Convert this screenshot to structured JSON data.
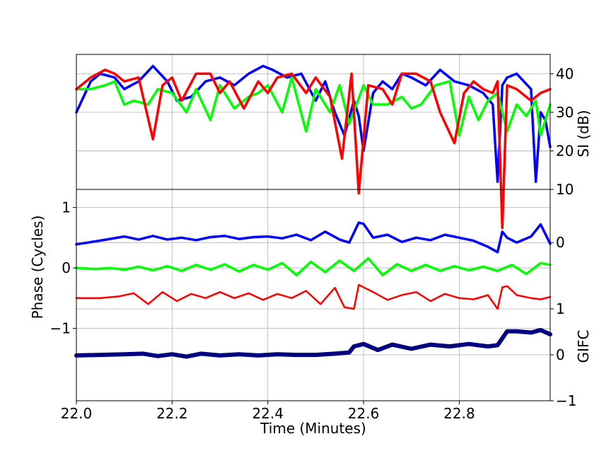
{
  "chart_data": {
    "type": "line",
    "xlabel": "Time (Minutes)",
    "xlim": [
      22.0,
      22.99
    ],
    "xticks": [
      22.0,
      22.2,
      22.4,
      22.6,
      22.8
    ],
    "xtick_labels": [
      "22.0",
      "22.2",
      "22.4",
      "22.6",
      "22.8"
    ],
    "grid": true,
    "panels": [
      {
        "id": "si",
        "ylabel_right": "SI (dB)",
        "ylim": [
          10,
          45
        ],
        "yticks": [
          10,
          20,
          30,
          40
        ],
        "ytick_labels": [
          "10",
          "20",
          "30",
          "40"
        ],
        "series": [
          {
            "color": "#0000ff",
            "x": [
              22.0,
              22.03,
              22.05,
              22.08,
              22.1,
              22.13,
              22.16,
              22.19,
              22.21,
              22.24,
              22.27,
              22.3,
              22.33,
              22.36,
              22.39,
              22.41,
              22.44,
              22.47,
              22.5,
              22.52,
              22.54,
              22.56,
              22.58,
              22.59,
              22.6,
              22.62,
              22.64,
              22.66,
              22.68,
              22.7,
              22.73,
              22.76,
              22.79,
              22.82,
              22.85,
              22.87,
              22.88,
              22.89,
              22.9,
              22.92,
              22.95,
              22.96,
              22.97,
              22.98,
              22.99
            ],
            "y": [
              30,
              38,
              40,
              39,
              36,
              38,
              42,
              38,
              33,
              34,
              38,
              39,
              37,
              40,
              42,
              41,
              39,
              40,
              33,
              38,
              30,
              24,
              33,
              29,
              20,
              35,
              38,
              36,
              40,
              39,
              37,
              41,
              38,
              37,
              35,
              32,
              12,
              37,
              39,
              40,
              36,
              12,
              30,
              28,
              21
            ]
          },
          {
            "color": "#00ff00",
            "x": [
              22.0,
              22.03,
              22.06,
              22.08,
              22.1,
              22.12,
              22.15,
              22.17,
              22.2,
              22.23,
              22.25,
              22.28,
              22.3,
              22.33,
              22.36,
              22.38,
              22.4,
              22.43,
              22.45,
              22.48,
              22.5,
              22.53,
              22.55,
              22.57,
              22.6,
              22.62,
              22.65,
              22.68,
              22.7,
              22.72,
              22.75,
              22.78,
              22.8,
              22.82,
              22.84,
              22.86,
              22.88,
              22.9,
              22.92,
              22.94,
              22.96,
              22.97,
              22.99
            ],
            "y": [
              36,
              36,
              37,
              38,
              32,
              33,
              32,
              36,
              35,
              30,
              36,
              28,
              37,
              31,
              34,
              35,
              37,
              30,
              39,
              25,
              36,
              30,
              37,
              27,
              37,
              32,
              32,
              34,
              31,
              32,
              37,
              38,
              24,
              34,
              28,
              33,
              35,
              25,
              32,
              29,
              33,
              24,
              32
            ]
          },
          {
            "color": "#ff0000",
            "x": [
              22.0,
              22.03,
              22.06,
              22.08,
              22.1,
              22.13,
              22.16,
              22.18,
              22.2,
              22.22,
              22.25,
              22.28,
              22.3,
              22.32,
              22.35,
              22.38,
              22.4,
              22.42,
              22.45,
              22.48,
              22.5,
              22.53,
              22.555,
              22.575,
              22.59,
              22.61,
              22.64,
              22.66,
              22.68,
              22.71,
              22.74,
              22.76,
              22.79,
              22.81,
              22.83,
              22.85,
              22.87,
              22.88,
              22.89,
              22.9,
              22.92,
              22.95,
              22.97,
              22.99
            ],
            "y": [
              36,
              39,
              41,
              40,
              38,
              39,
              23,
              37,
              39,
              33,
              40,
              40,
              35,
              38,
              31,
              38,
              35,
              39,
              40,
              35,
              39,
              34,
              18,
              40,
              9,
              37,
              36,
              32,
              40,
              40,
              38,
              30,
              22,
              35,
              38,
              36,
              35,
              38,
              0,
              37,
              36,
              33,
              35,
              36
            ]
          }
        ]
      },
      {
        "id": "phase",
        "ylabel_left": "Phase (Cycles)",
        "ylim": [
          -2.2,
          1.3
        ],
        "yticks": [
          -1,
          0,
          1
        ],
        "ytick_labels": [
          "−1",
          "0",
          "1"
        ],
        "series": [
          {
            "color": "#0000ff",
            "x": [
              22.0,
              22.04,
              22.07,
              22.1,
              22.13,
              22.16,
              22.19,
              22.22,
              22.25,
              22.28,
              22.31,
              22.34,
              22.37,
              22.4,
              22.43,
              22.46,
              22.49,
              22.52,
              22.55,
              22.57,
              22.59,
              22.6,
              22.62,
              22.65,
              22.68,
              22.71,
              22.74,
              22.77,
              22.8,
              22.83,
              22.86,
              22.88,
              22.89,
              22.9,
              22.92,
              22.95,
              22.97,
              22.99
            ],
            "y": [
              0.39,
              0.44,
              0.48,
              0.52,
              0.47,
              0.53,
              0.47,
              0.5,
              0.46,
              0.51,
              0.53,
              0.48,
              0.51,
              0.52,
              0.49,
              0.55,
              0.46,
              0.6,
              0.47,
              0.42,
              0.75,
              0.73,
              0.5,
              0.55,
              0.43,
              0.5,
              0.46,
              0.55,
              0.5,
              0.45,
              0.35,
              0.26,
              0.6,
              0.5,
              0.42,
              0.52,
              0.72,
              0.4
            ]
          },
          {
            "color": "#00ff00",
            "x": [
              22.0,
              22.04,
              22.07,
              22.1,
              22.13,
              22.16,
              22.19,
              22.22,
              22.25,
              22.28,
              22.31,
              22.34,
              22.37,
              22.4,
              22.43,
              22.46,
              22.49,
              22.52,
              22.55,
              22.58,
              22.61,
              22.64,
              22.67,
              22.7,
              22.73,
              22.76,
              22.79,
              22.82,
              22.85,
              22.88,
              22.91,
              22.94,
              22.97,
              22.99
            ],
            "y": [
              0.0,
              -0.02,
              0.0,
              -0.03,
              0.02,
              -0.04,
              0.03,
              -0.05,
              0.05,
              -0.03,
              0.06,
              -0.06,
              0.05,
              -0.03,
              0.08,
              -0.12,
              0.1,
              -0.07,
              0.12,
              -0.05,
              0.16,
              -0.12,
              0.06,
              -0.05,
              0.05,
              -0.05,
              0.03,
              -0.04,
              0.02,
              -0.05,
              0.05,
              -0.1,
              0.08,
              0.05
            ]
          },
          {
            "color": "#ff0000",
            "x": [
              22.0,
              22.05,
              22.09,
              22.12,
              22.15,
              22.18,
              22.21,
              22.24,
              22.27,
              22.3,
              22.33,
              22.36,
              22.39,
              22.42,
              22.45,
              22.48,
              22.51,
              22.54,
              22.56,
              22.58,
              22.59,
              22.62,
              22.65,
              22.68,
              22.71,
              22.74,
              22.77,
              22.8,
              22.83,
              22.86,
              22.88,
              22.89,
              22.9,
              22.92,
              22.95,
              22.97,
              22.99
            ],
            "y": [
              -0.5,
              -0.5,
              -0.47,
              -0.42,
              -0.6,
              -0.4,
              -0.55,
              -0.43,
              -0.5,
              -0.4,
              -0.5,
              -0.42,
              -0.53,
              -0.43,
              -0.5,
              -0.38,
              -0.6,
              -0.33,
              -0.65,
              -0.68,
              -0.28,
              -0.4,
              -0.53,
              -0.45,
              -0.4,
              -0.55,
              -0.43,
              -0.5,
              -0.52,
              -0.45,
              -0.68,
              -0.32,
              -0.3,
              -0.45,
              -0.5,
              -0.52,
              -0.48
            ]
          },
          {
            "color": "#000080",
            "x": [
              22.0,
              22.05,
              22.1,
              22.14,
              22.17,
              22.2,
              22.23,
              22.26,
              22.3,
              22.34,
              22.38,
              22.42,
              22.46,
              22.5,
              22.54,
              22.57,
              22.58,
              22.6,
              22.63,
              22.66,
              22.7,
              22.74,
              22.78,
              22.82,
              22.86,
              22.88,
              22.9,
              22.92,
              22.95,
              22.97,
              22.99
            ],
            "y": [
              -1.45,
              -1.44,
              -1.43,
              -1.42,
              -1.46,
              -1.43,
              -1.47,
              -1.42,
              -1.45,
              -1.43,
              -1.45,
              -1.43,
              -1.44,
              -1.44,
              -1.42,
              -1.4,
              -1.3,
              -1.26,
              -1.36,
              -1.27,
              -1.34,
              -1.27,
              -1.3,
              -1.26,
              -1.3,
              -1.28,
              -1.05,
              -1.05,
              -1.07,
              -1.03,
              -1.1
            ]
          }
        ]
      }
    ],
    "gifc_axis": {
      "ylabel_right": "GIFC",
      "ylim": [
        -1,
        3.6
      ],
      "yticks": [
        -1,
        0,
        1
      ],
      "ytick_labels": [
        "−1",
        "0",
        "1"
      ]
    },
    "phase_right_tick": {
      "value": 0.42,
      "label": "0"
    }
  }
}
